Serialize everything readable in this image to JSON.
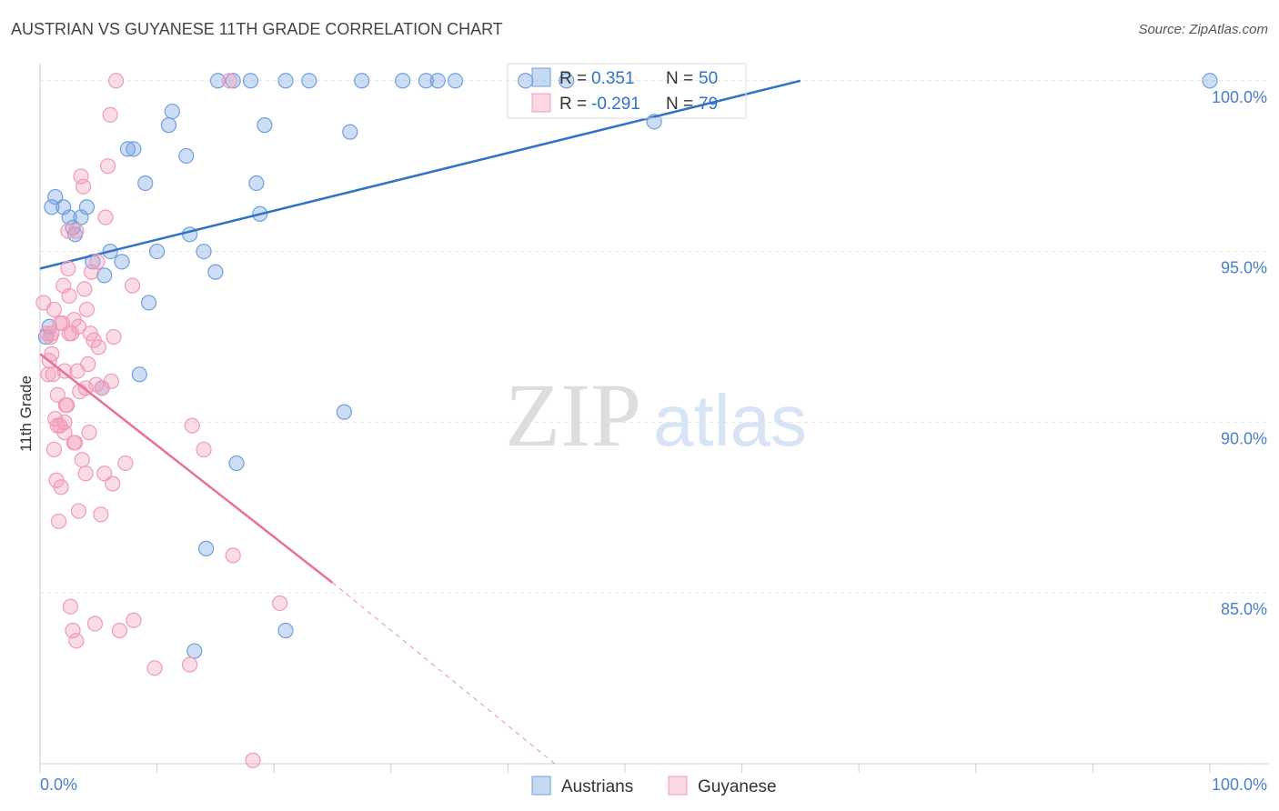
{
  "title": "AUSTRIAN VS GUYANESE 11TH GRADE CORRELATION CHART",
  "source": "Source: ZipAtlas.com",
  "chart_data": {
    "type": "scatter",
    "ylabel": "11th Grade",
    "xlim": [
      0,
      100
    ],
    "ylim": [
      80,
      100.5
    ],
    "y_ticks": [
      "100.0%",
      "95.0%",
      "90.0%",
      "85.0%"
    ],
    "x_min_label": "0.0%",
    "x_max_label": "100.0%",
    "watermark": {
      "a": "ZIP",
      "b": "atlas"
    },
    "series": [
      {
        "name": "Austrians",
        "color": "#6f9fe0",
        "r": "0.351",
        "n": "50",
        "trend": [
          [
            0,
            94.5
          ],
          [
            65,
            100
          ]
        ],
        "points": [
          [
            1,
            96.3
          ],
          [
            1.3,
            96.6
          ],
          [
            2,
            96.3
          ],
          [
            2.5,
            96
          ],
          [
            2.8,
            95.7
          ],
          [
            3,
            95.5
          ],
          [
            3.5,
            96
          ],
          [
            4,
            96.3
          ],
          [
            4.5,
            94.7
          ],
          [
            5.5,
            94.3
          ],
          [
            6,
            95
          ],
          [
            7,
            94.7
          ],
          [
            7.5,
            98
          ],
          [
            8,
            98
          ],
          [
            9,
            97
          ],
          [
            9.3,
            93.5
          ],
          [
            10,
            95
          ],
          [
            11,
            98.7
          ],
          [
            11.3,
            99.1
          ],
          [
            12.5,
            97.8
          ],
          [
            12.8,
            95.5
          ],
          [
            14,
            95
          ],
          [
            15,
            94.4
          ],
          [
            15.2,
            100
          ],
          [
            16.5,
            100
          ],
          [
            18,
            100
          ],
          [
            18.8,
            96.1
          ],
          [
            18.5,
            97
          ],
          [
            19.2,
            98.7
          ],
          [
            21,
            100
          ],
          [
            23,
            100
          ],
          [
            26.5,
            98.5
          ],
          [
            27.5,
            100
          ],
          [
            31,
            100
          ],
          [
            33,
            100
          ],
          [
            34,
            100
          ],
          [
            35.5,
            100
          ],
          [
            41.5,
            100
          ],
          [
            45,
            100
          ],
          [
            52.5,
            98.8
          ],
          [
            100,
            100
          ],
          [
            0.5,
            92.5
          ],
          [
            0.8,
            92.8
          ],
          [
            5.3,
            91
          ],
          [
            8.5,
            91.4
          ],
          [
            26,
            90.3
          ],
          [
            16.8,
            88.8
          ],
          [
            14.2,
            86.3
          ],
          [
            21,
            83.9
          ],
          [
            13.2,
            83.3
          ]
        ]
      },
      {
        "name": "Guyanese",
        "color": "#f19ab8",
        "r": "-0.291",
        "n": "79",
        "trend": [
          [
            0,
            92
          ],
          [
            25,
            85.3
          ]
        ],
        "dash_to": [
          44,
          80
        ],
        "points": [
          [
            0.3,
            93.5
          ],
          [
            0.6,
            92.6
          ],
          [
            0.8,
            91.8
          ],
          [
            1,
            92
          ],
          [
            1.1,
            91.4
          ],
          [
            1.3,
            90.1
          ],
          [
            1.5,
            90.8
          ],
          [
            1.7,
            89.9
          ],
          [
            1.9,
            92.9
          ],
          [
            2,
            94
          ],
          [
            2.2,
            90.5
          ],
          [
            2.4,
            94.5
          ],
          [
            2.5,
            93.7
          ],
          [
            2.7,
            92.6
          ],
          [
            2.9,
            93
          ],
          [
            3,
            89.4
          ],
          [
            3.2,
            91.5
          ],
          [
            3.4,
            90.9
          ],
          [
            3.5,
            97.2
          ],
          [
            3.7,
            96.9
          ],
          [
            3.9,
            88.5
          ],
          [
            4,
            93.3
          ],
          [
            4.2,
            89.7
          ],
          [
            4.4,
            94.4
          ],
          [
            4.6,
            92.4
          ],
          [
            4.8,
            91.1
          ],
          [
            5,
            92.2
          ],
          [
            5.3,
            91
          ],
          [
            5.5,
            88.5
          ],
          [
            5.8,
            97.5
          ],
          [
            6.2,
            88.2
          ],
          [
            1.2,
            89.2
          ],
          [
            1.4,
            88.3
          ],
          [
            1.6,
            87.1
          ],
          [
            1.8,
            88.1
          ],
          [
            2.1,
            90
          ],
          [
            2.3,
            90.5
          ],
          [
            2.6,
            84.6
          ],
          [
            2.8,
            83.9
          ],
          [
            3.1,
            83.6
          ],
          [
            3.3,
            87.4
          ],
          [
            3.6,
            88.9
          ],
          [
            4.1,
            91.7
          ],
          [
            4.3,
            92.6
          ],
          [
            4.7,
            84.1
          ],
          [
            5.2,
            87.3
          ],
          [
            5.6,
            96
          ],
          [
            6.8,
            83.9
          ],
          [
            7.3,
            88.8
          ],
          [
            8,
            84.2
          ],
          [
            9.8,
            82.8
          ],
          [
            12.8,
            82.9
          ],
          [
            13,
            89.9
          ],
          [
            14,
            89.2
          ],
          [
            16.5,
            86.1
          ],
          [
            20.5,
            84.7
          ],
          [
            6,
            99
          ],
          [
            6.5,
            100
          ],
          [
            1,
            92.6
          ],
          [
            2.4,
            95.6
          ],
          [
            1.5,
            89.9
          ],
          [
            3.8,
            93.9
          ],
          [
            0.9,
            92.5
          ],
          [
            2.1,
            91.5
          ],
          [
            1.7,
            92.9
          ],
          [
            6.1,
            91.2
          ],
          [
            3.9,
            91
          ],
          [
            6.3,
            92.5
          ],
          [
            3.1,
            95.6
          ],
          [
            2.9,
            89.4
          ],
          [
            1.2,
            93.3
          ],
          [
            4.9,
            94.7
          ],
          [
            0.7,
            91.4
          ],
          [
            7.9,
            94
          ],
          [
            16.2,
            100
          ],
          [
            18.2,
            80.1
          ],
          [
            2.5,
            92.6
          ],
          [
            3.3,
            92.8
          ],
          [
            2.1,
            89.7
          ]
        ]
      }
    ]
  }
}
